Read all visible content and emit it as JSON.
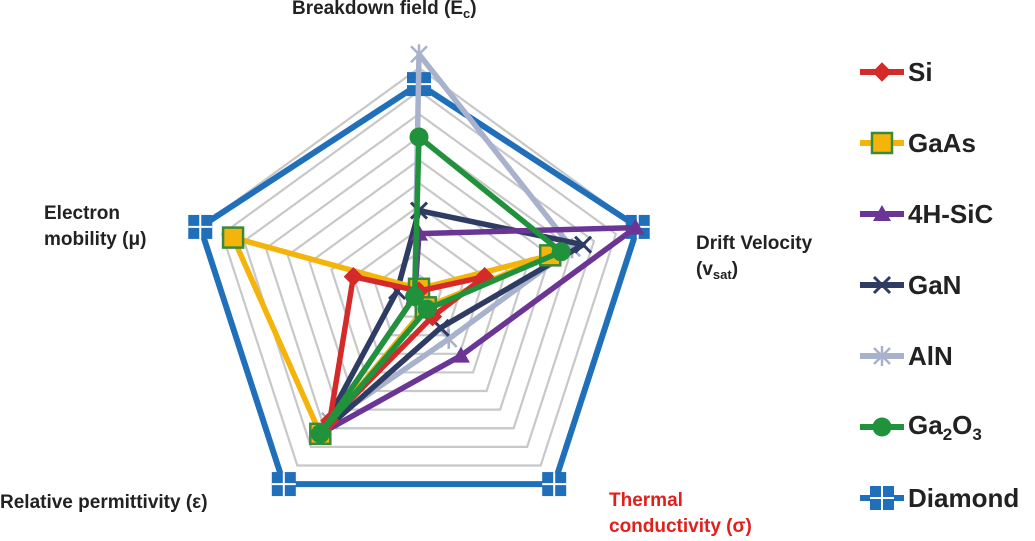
{
  "chart_data": {
    "type": "radar",
    "axes": [
      {
        "label": "Breakdown field (E",
        "sub": "c",
        "suffix": ")"
      },
      {
        "label": "Drift Velocity",
        "line2": "(v",
        "sub": "sat",
        "suffix": ")"
      },
      {
        "label": "Thermal",
        "line2": "conductivity (σ)",
        "color": "#e0201c"
      },
      {
        "label": "Relative permittivity (ε)"
      },
      {
        "label": "Electron",
        "line2": "mobility (μ)"
      }
    ],
    "rings": 10,
    "range": [
      0,
      1
    ],
    "series": [
      {
        "name": "Si",
        "color": "#d42a2a",
        "marker": "diamond",
        "values": [
          0.03,
          0.3,
          0.1,
          0.66,
          0.3
        ]
      },
      {
        "name": "GaAs",
        "color": "#f5b40a",
        "marker": "square",
        "values": [
          0.04,
          0.6,
          0.05,
          0.73,
          0.85
        ]
      },
      {
        "name": "4H-SiC",
        "color": "#6b3596",
        "marker": "triangle",
        "values": [
          0.28,
          0.99,
          0.31,
          0.73,
          0.02
        ]
      },
      {
        "name": "GaN",
        "color": "#2e3c64",
        "marker": "x",
        "values": [
          0.38,
          0.75,
          0.16,
          0.73,
          0.1
        ]
      },
      {
        "name": "AlN",
        "color": "#a8b2cc",
        "marker": "asterisk",
        "values": [
          1.06,
          0.7,
          0.22,
          0.66,
          0.02
        ]
      },
      {
        "name": "Ga",
        "name_sub1": "2",
        "name_mid": "O",
        "name_sub2": "3",
        "color": "#20923c",
        "marker": "circle",
        "values": [
          0.7,
          0.65,
          0.06,
          0.73,
          0.02
        ]
      },
      {
        "name": "Diamond",
        "color": "#1f6fba",
        "marker": "cross",
        "values": [
          0.93,
          1.0,
          1.0,
          1.0,
          1.0
        ]
      }
    ]
  }
}
